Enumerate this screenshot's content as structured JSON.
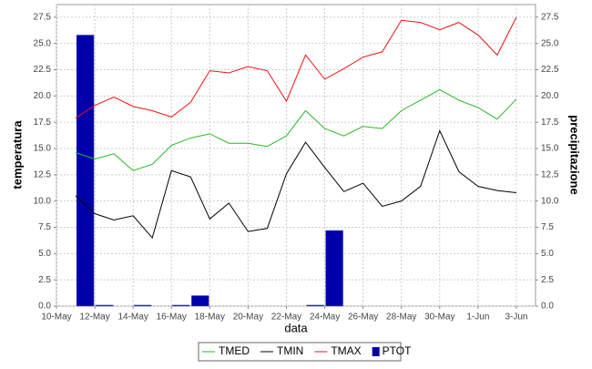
{
  "chart_data": {
    "type": "line",
    "xlabel": "data",
    "ylabel": "temperatura",
    "y2label": "precipitazione",
    "categories": [
      "10-May",
      null,
      "12-May",
      null,
      "14-May",
      null,
      "16-May",
      null,
      "18-May",
      null,
      "20-May",
      null,
      "22-May",
      null,
      "24-May",
      null,
      "26-May",
      null,
      "28-May",
      null,
      "30-May",
      null,
      "1-Jun",
      null,
      "3-Jun",
      null
    ],
    "series": [
      {
        "name": "TMED",
        "type": "line",
        "color": "#22bb22",
        "values": [
          null,
          14.6,
          14.0,
          14.5,
          12.9,
          13.5,
          15.3,
          16.0,
          16.4,
          15.5,
          15.5,
          15.2,
          16.2,
          18.6,
          16.9,
          16.2,
          17.1,
          16.9,
          18.6,
          19.6,
          20.6,
          19.6,
          18.9,
          17.8,
          19.7,
          null
        ]
      },
      {
        "name": "TMIN",
        "type": "line",
        "color": "#000000",
        "values": [
          null,
          10.5,
          8.8,
          8.2,
          8.6,
          6.5,
          12.9,
          12.3,
          8.3,
          9.8,
          7.1,
          7.4,
          12.6,
          15.6,
          13.2,
          10.9,
          11.7,
          9.5,
          10.0,
          11.4,
          16.7,
          12.8,
          11.4,
          11.0,
          10.8,
          null
        ]
      },
      {
        "name": "TMAX",
        "type": "line",
        "color": "#ee1111",
        "values": [
          null,
          17.9,
          19.1,
          19.9,
          19.0,
          18.6,
          18.0,
          19.4,
          22.4,
          22.2,
          22.8,
          22.4,
          19.5,
          23.9,
          21.6,
          22.6,
          23.7,
          24.2,
          27.2,
          27.0,
          26.3,
          27.0,
          25.8,
          23.9,
          27.5,
          null
        ]
      },
      {
        "name": "PTOT",
        "type": "bar",
        "axis": "y2",
        "color": "#0000aa",
        "values": [
          null,
          25.8,
          0.1,
          0,
          0.1,
          0,
          0.1,
          1.0,
          0,
          0,
          0,
          0,
          0,
          0.1,
          7.2,
          0,
          0,
          0,
          0,
          0,
          0,
          0,
          0,
          0,
          0,
          null
        ]
      }
    ],
    "ylim": [
      0,
      28.7
    ],
    "yticks": [
      {
        "value": 0,
        "label": "0.0"
      },
      {
        "value": 2.5,
        "label": "2.5"
      },
      {
        "value": 5,
        "label": "5.0"
      },
      {
        "value": 7.5,
        "label": "7.5"
      },
      {
        "value": 10,
        "label": "10.0"
      },
      {
        "value": 12.5,
        "label": "12.5"
      },
      {
        "value": 15,
        "label": "15.0"
      },
      {
        "value": 17.5,
        "label": "17.5"
      },
      {
        "value": 20,
        "label": "20.0"
      },
      {
        "value": 22.5,
        "label": "22.5"
      },
      {
        "value": 25,
        "label": "25.0"
      },
      {
        "value": 27.5,
        "label": "27.5"
      }
    ],
    "y2lim": [
      0,
      28.7
    ],
    "y2ticks": [
      {
        "value": 0,
        "label": "0.0"
      },
      {
        "value": 2.5,
        "label": "2.5"
      },
      {
        "value": 5,
        "label": "5.0"
      },
      {
        "value": 7.5,
        "label": "7.5"
      },
      {
        "value": 10,
        "label": "10.0"
      },
      {
        "value": 12.5,
        "label": "12.5"
      },
      {
        "value": 15,
        "label": "15.0"
      },
      {
        "value": 17.5,
        "label": "17.5"
      },
      {
        "value": 20,
        "label": "20.0"
      },
      {
        "value": 22.5,
        "label": "22.5"
      },
      {
        "value": 25,
        "label": "25.0"
      },
      {
        "value": 27.5,
        "label": "27.5"
      }
    ],
    "grid": true,
    "legend": "bottom"
  }
}
